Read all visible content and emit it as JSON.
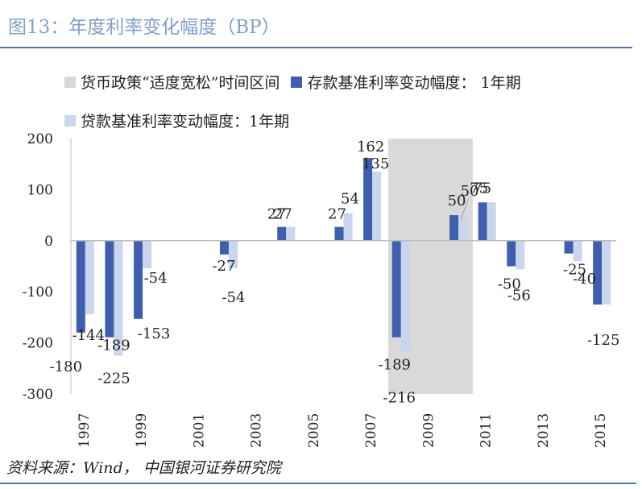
{
  "header": {
    "title": "图13：年度利率变化幅度（BP）"
  },
  "legend": {
    "shade_label": "货币政策“适度宽松”时间区间",
    "deposit_label": "存款基准利率变动幅度： 1年期",
    "loan_label": "贷款基准利率变动幅度：1年期"
  },
  "colors": {
    "deposit": "#3d5fae",
    "loan": "#c9d6ee",
    "shade": "#d9d9d9",
    "title": "#7f9fcc"
  },
  "chart_data": {
    "type": "bar",
    "years": [
      "1997",
      "1998",
      "1999",
      "2000",
      "2001",
      "2002",
      "2003",
      "2004",
      "2005",
      "2006",
      "2007",
      "2008",
      "2009",
      "2010",
      "2011",
      "2012",
      "2013",
      "2014",
      "2015"
    ],
    "x_tick_labels": [
      "1997",
      "1999",
      "2001",
      "2003",
      "2005",
      "2007",
      "2009",
      "2011",
      "2013",
      "2015"
    ],
    "series": [
      {
        "name": "存款基准利率变动幅度： 1年期",
        "values": [
          -180,
          -189,
          -153,
          0,
          0,
          -27,
          0,
          27,
          0,
          27,
          162,
          -189,
          0,
          50,
          75,
          -50,
          0,
          -25,
          -125
        ]
      },
      {
        "name": "贷款基准利率变动幅度：1年期",
        "values": [
          -144,
          -225,
          -54,
          0,
          0,
          -54,
          0,
          27,
          0,
          54,
          135,
          -216,
          0,
          50,
          75,
          -56,
          0,
          -40,
          -125
        ]
      }
    ],
    "shaded_period": {
      "label": "货币政策“适度宽松”时间区间",
      "from": "2008",
      "to": "2010"
    },
    "ylim": [
      -300,
      200
    ],
    "y_ticks": [
      200,
      100,
      0,
      -100,
      -200,
      -300
    ],
    "data_labels": [
      {
        "text": "-144",
        "year": "1997",
        "value": -144
      },
      {
        "text": "-180",
        "year": "1997",
        "value": -180
      },
      {
        "text": "-189",
        "year": "1998",
        "value": -189
      },
      {
        "text": "-225",
        "year": "1998",
        "value": -225
      },
      {
        "text": "-54",
        "year": "1999",
        "value": -54
      },
      {
        "text": "-153",
        "year": "1999",
        "value": -153
      },
      {
        "text": "-27",
        "year": "2002",
        "value": -27
      },
      {
        "text": "-54",
        "year": "2002",
        "value": -54
      },
      {
        "text": "27",
        "year": "2004",
        "value": 27
      },
      {
        "text": "27",
        "year": "2004",
        "value": 27
      },
      {
        "text": "27",
        "year": "2006",
        "value": 27
      },
      {
        "text": "54",
        "year": "2006",
        "value": 54
      },
      {
        "text": "162",
        "year": "2007",
        "value": 162
      },
      {
        "text": "135",
        "year": "2007",
        "value": 135
      },
      {
        "text": "-189",
        "year": "2008",
        "value": -189
      },
      {
        "text": "-216",
        "year": "2008",
        "value": -216
      },
      {
        "text": "50",
        "year": "2010",
        "value": 50
      },
      {
        "text": "50",
        "year": "2010",
        "value": 50
      },
      {
        "text": "75",
        "year": "2011",
        "value": 75
      },
      {
        "text": "75",
        "year": "2011",
        "value": 75
      },
      {
        "text": "-50",
        "year": "2012",
        "value": -50
      },
      {
        "text": "-56",
        "year": "2012",
        "value": -56
      },
      {
        "text": "-25",
        "year": "2014",
        "value": -25
      },
      {
        "text": "-40",
        "year": "2014",
        "value": -40
      },
      {
        "text": "-125",
        "year": "2015",
        "value": -125
      }
    ]
  },
  "footer": {
    "source": "资料来源：Wind， 中国银河证券研究院"
  }
}
